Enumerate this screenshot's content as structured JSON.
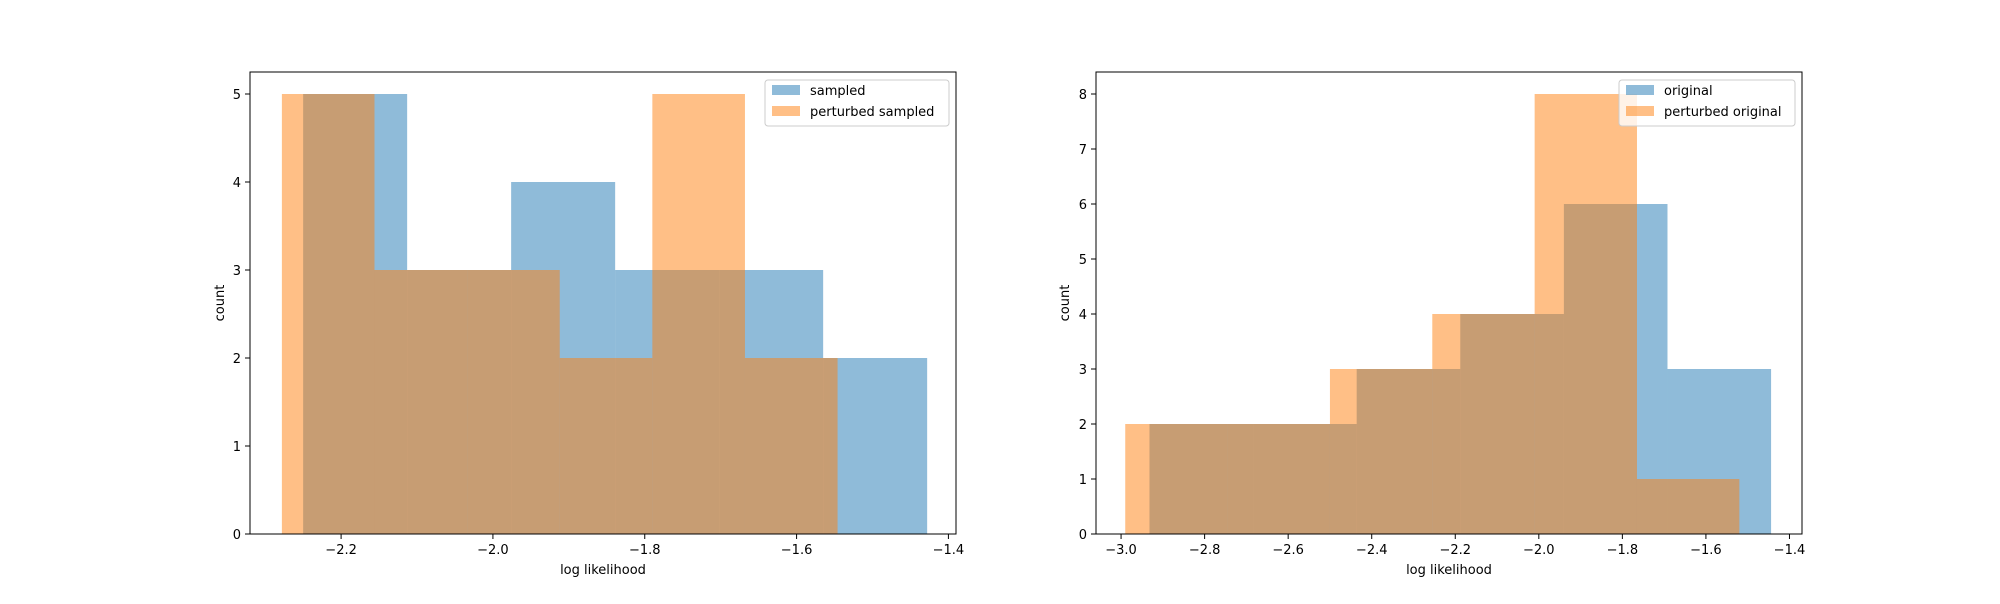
{
  "chart_data": [
    {
      "type": "bar",
      "subtype": "overlapping-histogram",
      "title": "",
      "xlabel": "log likelihood",
      "ylabel": "count",
      "xlim": [
        -2.32,
        -1.39
      ],
      "ylim": [
        0,
        5.25
      ],
      "xticks": [
        -2.2,
        -2.0,
        -1.8,
        -1.6,
        -1.4
      ],
      "xtick_labels": [
        "−2.2",
        "−2.0",
        "−1.8",
        "−1.6",
        "−1.4"
      ],
      "yticks": [
        0,
        1,
        2,
        3,
        4,
        5
      ],
      "ytick_labels": [
        "0",
        "1",
        "2",
        "3",
        "4",
        "5"
      ],
      "grid": false,
      "legend_position": "top-right",
      "series": [
        {
          "name": "sampled",
          "color": "#1f77b4",
          "opacity": 0.5,
          "bins": [
            {
              "x0": -2.25,
              "x1": -2.113,
              "count": 5
            },
            {
              "x0": -2.113,
              "x1": -1.976,
              "count": 3
            },
            {
              "x0": -1.976,
              "x1": -1.839,
              "count": 4
            },
            {
              "x0": -1.839,
              "x1": -1.702,
              "count": 3
            },
            {
              "x0": -1.702,
              "x1": -1.565,
              "count": 3
            },
            {
              "x0": -1.565,
              "x1": -1.428,
              "count": 2
            }
          ]
        },
        {
          "name": "perturbed sampled",
          "color": "#ff7f0e",
          "opacity": 0.5,
          "bins": [
            {
              "x0": -2.278,
              "x1": -2.156,
              "count": 5
            },
            {
              "x0": -2.156,
              "x1": -2.034,
              "count": 3
            },
            {
              "x0": -2.034,
              "x1": -1.912,
              "count": 3
            },
            {
              "x0": -1.912,
              "x1": -1.79,
              "count": 2
            },
            {
              "x0": -1.79,
              "x1": -1.668,
              "count": 5
            },
            {
              "x0": -1.668,
              "x1": -1.546,
              "count": 2
            }
          ]
        }
      ]
    },
    {
      "type": "bar",
      "subtype": "overlapping-histogram",
      "title": "",
      "xlabel": "log likelihood",
      "ylabel": "count",
      "xlim": [
        -3.06,
        -1.37
      ],
      "ylim": [
        0,
        8.4
      ],
      "xticks": [
        -3.0,
        -2.8,
        -2.6,
        -2.4,
        -2.2,
        -2.0,
        -1.8,
        -1.6,
        -1.4
      ],
      "xtick_labels": [
        "−3.0",
        "−2.8",
        "−2.6",
        "−2.4",
        "−2.2",
        "−2.0",
        "−1.8",
        "−1.6",
        "−1.4"
      ],
      "yticks": [
        0,
        1,
        2,
        3,
        4,
        5,
        6,
        7,
        8
      ],
      "ytick_labels": [
        "0",
        "1",
        "2",
        "3",
        "4",
        "5",
        "6",
        "7",
        "8"
      ],
      "grid": false,
      "legend_position": "top-right",
      "series": [
        {
          "name": "original",
          "color": "#1f77b4",
          "opacity": 0.5,
          "bins": [
            {
              "x0": -2.932,
              "x1": -2.684,
              "count": 2
            },
            {
              "x0": -2.684,
              "x1": -2.436,
              "count": 2
            },
            {
              "x0": -2.436,
              "x1": -2.188,
              "count": 3
            },
            {
              "x0": -2.188,
              "x1": -1.94,
              "count": 4
            },
            {
              "x0": -1.94,
              "x1": -1.692,
              "count": 6
            },
            {
              "x0": -1.692,
              "x1": -1.444,
              "count": 3
            }
          ]
        },
        {
          "name": "perturbed original",
          "color": "#ff7f0e",
          "opacity": 0.5,
          "bins": [
            {
              "x0": -2.99,
              "x1": -2.745,
              "count": 2
            },
            {
              "x0": -2.745,
              "x1": -2.5,
              "count": 2
            },
            {
              "x0": -2.5,
              "x1": -2.255,
              "count": 3
            },
            {
              "x0": -2.255,
              "x1": -2.01,
              "count": 4
            },
            {
              "x0": -2.01,
              "x1": -1.765,
              "count": 8
            },
            {
              "x0": -1.765,
              "x1": -1.52,
              "count": 1
            }
          ]
        }
      ]
    }
  ]
}
